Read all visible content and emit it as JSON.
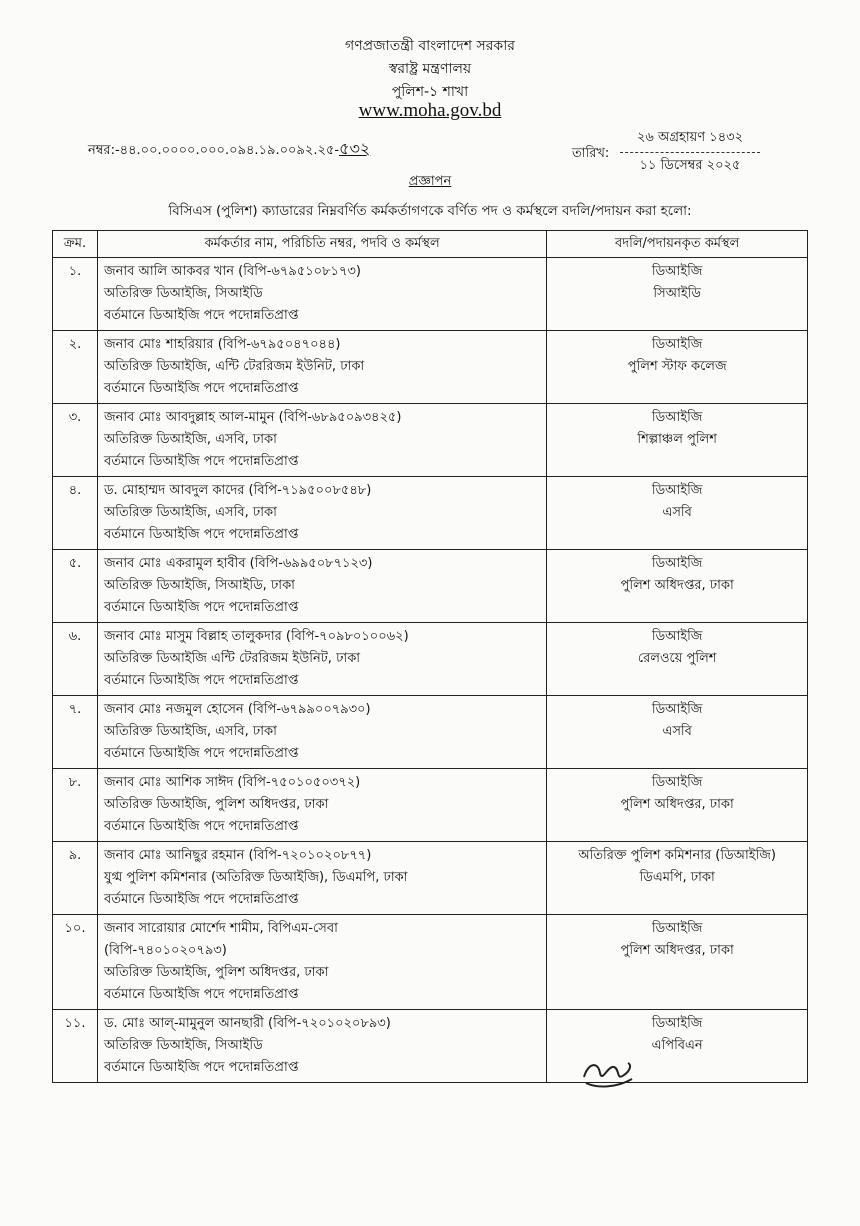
{
  "header": {
    "line1": "গণপ্রজাতন্ত্রী বাংলাদেশ সরকার",
    "line2": "স্বরাষ্ট্র মন্ত্রণালয়",
    "line3": "পুলিশ-১ শাখা",
    "website": "www.moha.gov.bd"
  },
  "reference": {
    "number": "নম্বর:-৪৪.০০.০০০০.০০০.০৯৪.১৯.০০৯২.২৫-",
    "handwritten_suffix": "৫৩২",
    "date_label": "তারিখ:",
    "date_bangla": "২৬ অগ্রহায়ণ ১৪৩২",
    "date_gregorian": "১১ ডিসেম্বর ২০২৫"
  },
  "title": "প্রজ্ঞাপন",
  "intro": "বিসিএস (পুলিশ) ক্যাডারের নিম্নবর্ণিত কর্মকর্তাগণকে বর্ণিত পদ ও কর্মস্থলে বদলি/পদায়ন করা হলো:",
  "table": {
    "headers": [
      "ক্রম.",
      "কর্মকর্তার নাম, পরিচিতি নম্বর, পদবি ও কর্মস্থল",
      "বদলি/পদায়নকৃত কর্মস্থল"
    ],
    "rows": [
      {
        "sl": "১.",
        "lines": [
          "জনাব আলি আকবর খান (বিপি-৬৭৯৫১০৮১৭৩)",
          "অতিরিক্ত ডিআইজি, সিআইডি",
          "বর্তমানে ডিআইজি পদে পদোন্নতিপ্রাপ্ত"
        ],
        "posting": [
          "ডিআইজি",
          "সিআইডি"
        ]
      },
      {
        "sl": "২.",
        "lines": [
          "জনাব মোঃ শাহরিয়ার (বিপি-৬৭৯৫০৪৭০৪৪)",
          "অতিরিক্ত ডিআইজি, এন্টি টেররিজম ইউনিট, ঢাকা",
          "বর্তমানে ডিআইজি পদে পদোন্নতিপ্রাপ্ত"
        ],
        "posting": [
          "ডিআইজি",
          "পুলিশ স্টাফ কলেজ"
        ]
      },
      {
        "sl": "৩.",
        "lines": [
          "জনাব মোঃ আবদুল্লাহ আল-মামুন (বিপি-৬৮৯৫০৯৩৪২৫)",
          "অতিরিক্ত ডিআইজি, এসবি, ঢাকা",
          "বর্তমানে ডিআইজি পদে পদোন্নতিপ্রাপ্ত"
        ],
        "posting": [
          "ডিআইজি",
          "শিল্পাঞ্চল পুলিশ"
        ]
      },
      {
        "sl": "৪.",
        "lines": [
          "ড. মোহাম্মদ আবদুল কাদের (বিপি-৭১৯৫০০৮৫৪৮)",
          "অতিরিক্ত ডিআইজি, এসবি, ঢাকা",
          "বর্তমানে ডিআইজি পদে পদোন্নতিপ্রাপ্ত"
        ],
        "posting": [
          "ডিআইজি",
          "এসবি"
        ]
      },
      {
        "sl": "৫.",
        "lines": [
          "জনাব মোঃ একরামুল হাবীব (বিপি-৬৯৯৫০৮৭১২৩)",
          "অতিরিক্ত ডিআইজি, সিআইডি, ঢাকা",
          "বর্তমানে ডিআইজি পদে পদোন্নতিপ্রাপ্ত"
        ],
        "posting": [
          "ডিআইজি",
          "পুলিশ অধিদপ্তর, ঢাকা"
        ]
      },
      {
        "sl": "৬.",
        "lines": [
          "জনাব মোঃ মাসুম বিল্লাহ তালুকদার (বিপি-৭০৯৮০১০০৬২)",
          "অতিরিক্ত ডিআইজি এন্টি টেররিজম ইউনিট, ঢাকা",
          "বর্তমানে ডিআইজি পদে পদোন্নতিপ্রাপ্ত"
        ],
        "posting": [
          "ডিআইজি",
          "রেলওয়ে পুলিশ"
        ]
      },
      {
        "sl": "৭.",
        "lines": [
          "জনাব মোঃ নজমুল হোসেন (বিপি-৬৭৯৯০০৭৯৩০)",
          "অতিরিক্ত ডিআইজি, এসবি, ঢাকা",
          "বর্তমানে ডিআইজি পদে পদোন্নতিপ্রাপ্ত"
        ],
        "posting": [
          "ডিআইজি",
          "এসবি"
        ]
      },
      {
        "sl": "৮.",
        "lines": [
          "জনাব মোঃ আশিক সাঈদ (বিপি-৭৫০১০৫০৩৭২)",
          "অতিরিক্ত ডিআইজি, পুলিশ অধিদপ্তর, ঢাকা",
          "বর্তমানে ডিআইজি পদে পদোন্নতিপ্রাপ্ত"
        ],
        "posting": [
          "ডিআইজি",
          "পুলিশ অধিদপ্তর, ঢাকা"
        ]
      },
      {
        "sl": "৯.",
        "lines": [
          "জনাব মোঃ আনিছুর রহমান (বিপি-৭২০১০২০৮৭৭)",
          "যুগ্ম পুলিশ কমিশনার (অতিরিক্ত ডিআইজি), ডিএমপি, ঢাকা",
          "বর্তমানে ডিআইজি পদে পদোন্নতিপ্রাপ্ত"
        ],
        "posting": [
          "অতিরিক্ত পুলিশ কমিশনার (ডিআইজি)",
          "ডিএমপি, ঢাকা"
        ]
      },
      {
        "sl": "১০.",
        "lines": [
          "জনাব সারোয়ার মোর্শেদ শামীম, বিপিএম-সেবা",
          "(বিপি-৭৪০১০২০৭৯৩)",
          "অতিরিক্ত ডিআইজি, পুলিশ অধিদপ্তর, ঢাকা",
          "বর্তমানে ডিআইজি পদে পদোন্নতিপ্রাপ্ত"
        ],
        "posting": [
          "ডিআইজি",
          "পুলিশ অধিদপ্তর, ঢাকা"
        ]
      },
      {
        "sl": "১১.",
        "lines": [
          "ড. মোঃ আল্-মামুনুল আনছারী (বিপি-৭২০১০২০৮৯৩)",
          "অতিরিক্ত ডিআইজি, সিআইডি",
          "বর্তমানে ডিআইজি পদে পদোন্নতিপ্রাপ্ত"
        ],
        "posting": [
          "ডিআইজি",
          "এপিবিএন"
        ]
      }
    ]
  },
  "signature": "handwritten-signature"
}
